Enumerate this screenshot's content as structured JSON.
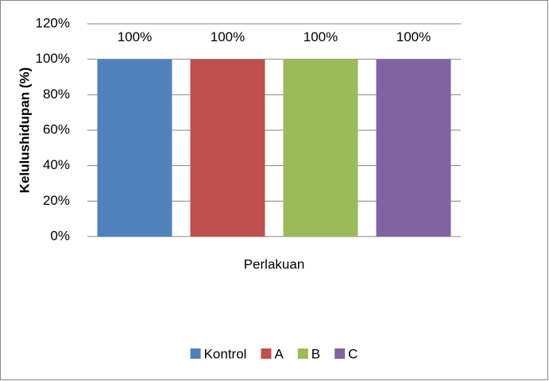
{
  "chart_data": {
    "type": "bar",
    "y_label": "Kelulushidupan (%)",
    "x_label": "Perlakuan",
    "categories": [
      null
    ],
    "series": [
      {
        "name": "Kontrol",
        "color": "#4f81bd",
        "values": [
          100
        ],
        "value_labels": [
          "100%"
        ]
      },
      {
        "name": "A",
        "color": "#c0504d",
        "values": [
          100
        ],
        "value_labels": [
          "100%"
        ]
      },
      {
        "name": "B",
        "color": "#9bbb59",
        "values": [
          100
        ],
        "value_labels": [
          "100%"
        ]
      },
      {
        "name": "C",
        "color": "#8064a2",
        "values": [
          100
        ],
        "value_labels": [
          "100%"
        ]
      }
    ],
    "ylim": [
      0,
      120
    ],
    "yticks": [
      {
        "value": 0,
        "label": "0%"
      },
      {
        "value": 20,
        "label": "20%"
      },
      {
        "value": 40,
        "label": "40%"
      },
      {
        "value": 60,
        "label": "60%"
      },
      {
        "value": 80,
        "label": "80%"
      },
      {
        "value": 100,
        "label": "100%"
      },
      {
        "value": 120,
        "label": "120%"
      }
    ],
    "grid": true,
    "legend": "bottom"
  }
}
